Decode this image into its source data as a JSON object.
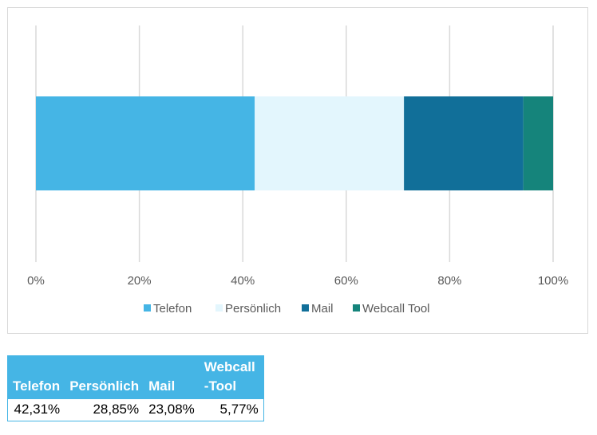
{
  "chart_data": {
    "type": "bar",
    "orientation": "horizontal",
    "stacked": "percent",
    "x_ticks": [
      "0%",
      "20%",
      "40%",
      "60%",
      "80%",
      "100%"
    ],
    "xlim": [
      0,
      100
    ],
    "grid": true,
    "legend_position": "bottom",
    "series": [
      {
        "name": "Telefon",
        "values": [
          42.31
        ],
        "color": "#45b5e5"
      },
      {
        "name": "Persönlich",
        "values": [
          28.85
        ],
        "color": "#e3f6fd"
      },
      {
        "name": "Mail",
        "values": [
          23.08
        ],
        "color": "#116f99"
      },
      {
        "name": "Webcall Tool",
        "values": [
          5.77
        ],
        "color": "#15847b"
      }
    ]
  },
  "table": {
    "headers": [
      "Telefon",
      "Persönlich",
      "Mail",
      "Webcall\n-Tool"
    ],
    "values": [
      "42,31%",
      "28,85%",
      "23,08%",
      "5,77%"
    ]
  }
}
